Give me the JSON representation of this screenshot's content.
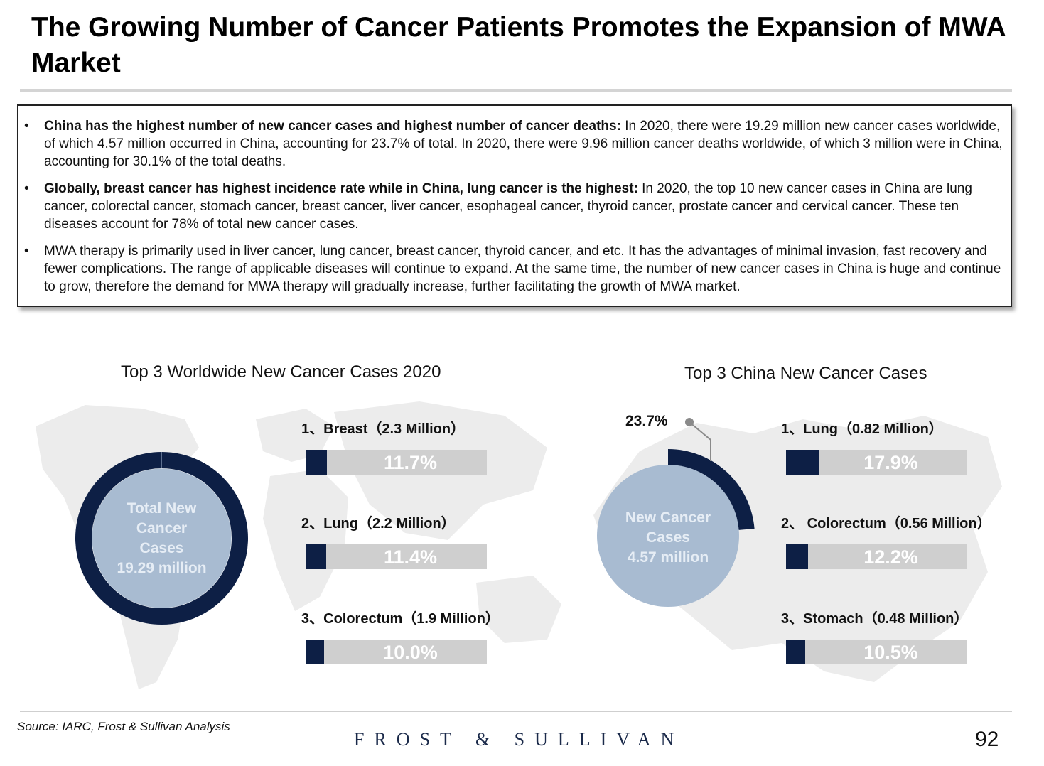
{
  "title": "The Growing Number of Cancer Patients Promotes the Expansion of MWA Market",
  "bullets": [
    {
      "bold": "China has the highest number of new cancer cases and highest number of cancer deaths:",
      "text": " In 2020, there were 19.29 million new cancer cases worldwide, of which 4.57 million occurred in China, accounting for 23.7% of total. In 2020, there were 9.96 million cancer deaths worldwide, of which 3 million were in China, accounting for 30.1% of  the total deaths."
    },
    {
      "bold": "Globally, breast cancer has highest incidence rate while in China, lung cancer is the highest:",
      "text": " In 2020, the top 10 new cancer cases in China are lung cancer, colorectal cancer, stomach cancer, breast cancer, liver cancer, esophageal cancer, thyroid cancer, prostate cancer and cervical cancer. These ten diseases account for 78% of total new cancer cases."
    },
    {
      "bold": "",
      "text": "MWA therapy is primarily used in liver cancer, lung cancer, breast cancer, thyroid cancer, and etc. It has the advantages of minimal invasion, fast recovery and fewer complications. The range of applicable diseases will continue to expand. At the same time, the number of new cancer cases in China is huge and continue to grow, therefore the demand for MWA therapy will gradually increase, further facilitating the growth of MWA market."
    }
  ],
  "bullet_symbol": "•",
  "colors": {
    "navy": "#0d1f45",
    "bar_bg": "#cfcfcf",
    "light_blue": "#a8bbd1",
    "map": "#ececec"
  },
  "chart_data": [
    {
      "type": "bar",
      "title": "Top 3 Worldwide New Cancer Cases 2020",
      "center_label": [
        "Total New",
        "Cancer",
        "Cases",
        "19.29 million"
      ],
      "donut_share": 1.0,
      "categories": [
        "1、Breast（2.3 Million）",
        "2、Lung（2.2 Million）",
        "3、Colorectum（1.9 Million）"
      ],
      "values": [
        11.7,
        11.4,
        10.0
      ],
      "value_labels": [
        "11.7%",
        "11.4%",
        "10.0%"
      ]
    },
    {
      "type": "bar",
      "title": "Top 3 China New Cancer Cases",
      "center_label": [
        "New Cancer",
        "Cases",
        "4.57 million"
      ],
      "donut_share": 0.237,
      "donut_share_label": "23.7%",
      "categories": [
        "1、Lung（0.82 Million）",
        "2、 Colorectum（0.56 Million）",
        "3、Stomach（0.48 Million）"
      ],
      "values": [
        17.9,
        12.2,
        10.5
      ],
      "value_labels": [
        "17.9%",
        "12.2%",
        "10.5%"
      ]
    }
  ],
  "footer": {
    "source": "Source: IARC, Frost & Sullivan Analysis",
    "brand": "FROST & SULLIVAN",
    "page": "92"
  }
}
